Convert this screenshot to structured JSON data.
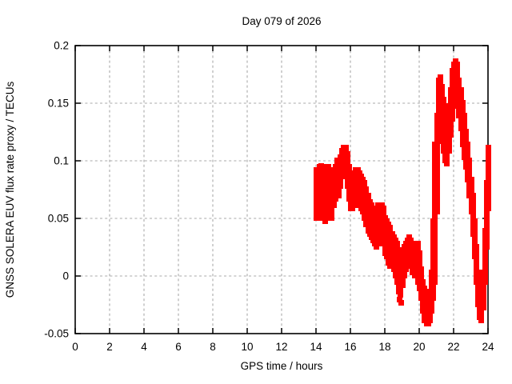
{
  "title": "Day 079 of 2026",
  "x_axis": {
    "label": "GPS time / hours",
    "min": 0,
    "max": 24,
    "tick_labels": [
      "0",
      "2",
      "4",
      "6",
      "8",
      "10",
      "12",
      "14",
      "16",
      "18",
      "20",
      "22",
      "24"
    ],
    "tick_values": [
      0,
      2,
      4,
      6,
      8,
      10,
      12,
      14,
      16,
      18,
      20,
      22,
      24
    ]
  },
  "y_axis": {
    "label": "GNSS SOLERA EUV flux rate proxy / TECUs",
    "min": -0.05,
    "max": 0.2,
    "tick_labels": [
      "-0.05",
      "0",
      "0.05",
      "0.1",
      "0.15",
      "0.2"
    ],
    "tick_values": [
      -0.05,
      0,
      0.05,
      0.1,
      0.15,
      0.2
    ]
  },
  "colors": {
    "series": "#ff0000",
    "grid": "#a9a9a9",
    "axis": "#000000",
    "background": "#ffffff"
  },
  "chart_data": {
    "type": "scatter",
    "title": "Day 079 of 2026",
    "xlabel": "GPS time / hours",
    "ylabel": "GNSS SOLERA EUV flux rate proxy / TECUs",
    "xlim": [
      0,
      24
    ],
    "ylim": [
      -0.05,
      0.2
    ],
    "grid": true,
    "legend": "none",
    "marker": "filled-square",
    "marker_color": "#ff0000",
    "note": "Dense noisy scatter band; no data before hour 14. Values given as [hour, band_low, band_high] in TECUs.",
    "band": [
      [
        14.0,
        0.05,
        0.092
      ],
      [
        14.1,
        0.052,
        0.093
      ],
      [
        14.2,
        0.058,
        0.096
      ],
      [
        14.3,
        0.058,
        0.092
      ],
      [
        14.4,
        0.05,
        0.095
      ],
      [
        14.5,
        0.048,
        0.095
      ],
      [
        14.6,
        0.05,
        0.094
      ],
      [
        14.7,
        0.055,
        0.096
      ],
      [
        14.8,
        0.052,
        0.092
      ],
      [
        14.9,
        0.05,
        0.088
      ],
      [
        15.0,
        0.062,
        0.092
      ],
      [
        15.1,
        0.068,
        0.096
      ],
      [
        15.2,
        0.072,
        0.1
      ],
      [
        15.3,
        0.07,
        0.1
      ],
      [
        15.4,
        0.078,
        0.104
      ],
      [
        15.5,
        0.088,
        0.11
      ],
      [
        15.6,
        0.094,
        0.113
      ],
      [
        15.7,
        0.09,
        0.112
      ],
      [
        15.8,
        0.078,
        0.106
      ],
      [
        15.9,
        0.066,
        0.096
      ],
      [
        16.0,
        0.06,
        0.09
      ],
      [
        16.1,
        0.06,
        0.088
      ],
      [
        16.2,
        0.062,
        0.09
      ],
      [
        16.3,
        0.064,
        0.091
      ],
      [
        16.4,
        0.065,
        0.092
      ],
      [
        16.5,
        0.063,
        0.09
      ],
      [
        16.6,
        0.06,
        0.088
      ],
      [
        16.7,
        0.057,
        0.085
      ],
      [
        16.8,
        0.051,
        0.08
      ],
      [
        16.9,
        0.045,
        0.075
      ],
      [
        17.0,
        0.04,
        0.07
      ],
      [
        17.1,
        0.037,
        0.065
      ],
      [
        17.2,
        0.034,
        0.061
      ],
      [
        17.3,
        0.031,
        0.058
      ],
      [
        17.4,
        0.029,
        0.055
      ],
      [
        17.5,
        0.026,
        0.058
      ],
      [
        17.6,
        0.028,
        0.061
      ],
      [
        17.7,
        0.03,
        0.063
      ],
      [
        17.8,
        0.03,
        0.062
      ],
      [
        17.9,
        0.028,
        0.059
      ],
      [
        18.0,
        0.021,
        0.052
      ],
      [
        18.1,
        0.016,
        0.048
      ],
      [
        18.2,
        0.012,
        0.045
      ],
      [
        18.3,
        0.01,
        0.042
      ],
      [
        18.4,
        0.008,
        0.038
      ],
      [
        18.5,
        0.005,
        0.034
      ],
      [
        18.6,
        0.002,
        0.031
      ],
      [
        18.7,
        -0.004,
        0.028
      ],
      [
        18.8,
        -0.012,
        0.024
      ],
      [
        18.9,
        -0.016,
        0.02
      ],
      [
        19.0,
        -0.008,
        0.021
      ],
      [
        19.1,
        0.0,
        0.025
      ],
      [
        19.2,
        0.006,
        0.029
      ],
      [
        19.3,
        0.01,
        0.032
      ],
      [
        19.4,
        0.01,
        0.034
      ],
      [
        19.5,
        0.008,
        0.03
      ],
      [
        19.6,
        0.004,
        0.026
      ],
      [
        19.7,
        0.001,
        0.026
      ],
      [
        19.8,
        0.0,
        0.029
      ],
      [
        19.9,
        -0.004,
        0.029
      ],
      [
        20.0,
        -0.01,
        0.02
      ],
      [
        20.1,
        -0.02,
        0.006
      ],
      [
        20.2,
        -0.029,
        -0.004
      ],
      [
        20.3,
        -0.037,
        -0.011
      ],
      [
        20.4,
        -0.042,
        -0.017
      ],
      [
        20.5,
        -0.042,
        -0.019
      ],
      [
        20.6,
        -0.038,
        -0.012
      ],
      [
        20.7,
        -0.03,
        0.004
      ],
      [
        20.8,
        -0.02,
        0.048
      ],
      [
        20.9,
        -0.004,
        0.115
      ],
      [
        21.0,
        0.055,
        0.14
      ],
      [
        21.1,
        0.118,
        0.17
      ],
      [
        21.2,
        0.134,
        0.172
      ],
      [
        21.3,
        0.124,
        0.164
      ],
      [
        21.4,
        0.11,
        0.154
      ],
      [
        21.5,
        0.1,
        0.144
      ],
      [
        21.6,
        0.099,
        0.139
      ],
      [
        21.7,
        0.108,
        0.148
      ],
      [
        21.8,
        0.124,
        0.163
      ],
      [
        21.9,
        0.138,
        0.178
      ],
      [
        22.0,
        0.148,
        0.185
      ],
      [
        22.1,
        0.154,
        0.188
      ],
      [
        22.2,
        0.148,
        0.183
      ],
      [
        22.3,
        0.139,
        0.171
      ],
      [
        22.4,
        0.128,
        0.161
      ],
      [
        22.5,
        0.115,
        0.15
      ],
      [
        22.6,
        0.104,
        0.139
      ],
      [
        22.7,
        0.094,
        0.126
      ],
      [
        22.8,
        0.083,
        0.115
      ],
      [
        22.9,
        0.07,
        0.1
      ],
      [
        23.0,
        0.055,
        0.085
      ],
      [
        23.1,
        0.038,
        0.07
      ],
      [
        23.2,
        0.017,
        0.047
      ],
      [
        23.3,
        -0.004,
        0.026
      ],
      [
        23.4,
        -0.024,
        0.004
      ],
      [
        23.5,
        -0.035,
        -0.01
      ],
      [
        23.6,
        -0.038,
        -0.014
      ],
      [
        23.7,
        -0.026,
        0.004
      ],
      [
        23.8,
        -0.004,
        0.04
      ],
      [
        23.9,
        0.025,
        0.08
      ],
      [
        24.0,
        0.058,
        0.113
      ]
    ],
    "outliers": [
      [
        18.85,
        -0.02
      ],
      [
        18.95,
        -0.023
      ],
      [
        14.3,
        0.096
      ]
    ]
  }
}
